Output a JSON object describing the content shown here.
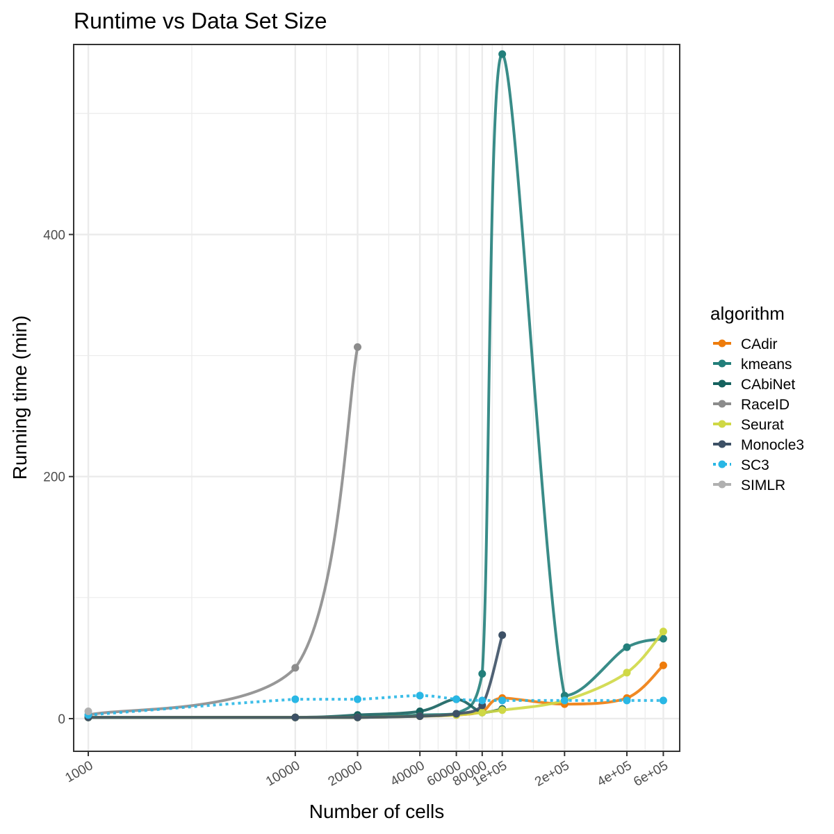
{
  "chart_data": {
    "type": "line",
    "title": "Runtime vs Data Set Size",
    "xlabel": "Number of cells",
    "ylabel": "Running time (min)",
    "xscale": "log10",
    "xlim": [
      850,
      720000
    ],
    "ylim": [
      -27,
      557
    ],
    "grid": true,
    "legend_position": "right",
    "legend_title": "algorithm",
    "x_ticks": [
      {
        "value": 1000,
        "label": "1000"
      },
      {
        "value": 10000,
        "label": "10000"
      },
      {
        "value": 20000,
        "label": "20000"
      },
      {
        "value": 40000,
        "label": "40000"
      },
      {
        "value": 60000,
        "label": "60000"
      },
      {
        "value": 80000,
        "label": "80000"
      },
      {
        "value": 100000,
        "label": "1e+05"
      },
      {
        "value": 200000,
        "label": "2e+05"
      },
      {
        "value": 400000,
        "label": "4e+05"
      },
      {
        "value": 600000,
        "label": "6e+05"
      }
    ],
    "y_ticks": [
      {
        "value": 0,
        "label": "0"
      },
      {
        "value": 200,
        "label": "200"
      },
      {
        "value": 400,
        "label": "400"
      }
    ],
    "series": [
      {
        "name": "CAdir",
        "color": "#ee7c0c",
        "dash": "solid",
        "x": [
          1000,
          10000,
          20000,
          40000,
          60000,
          80000,
          100000,
          200000,
          400000,
          600000
        ],
        "y": [
          1,
          1,
          1,
          2,
          3,
          6,
          17,
          12,
          17,
          44
        ]
      },
      {
        "name": "kmeans",
        "color": "#237f7b",
        "dash": "solid",
        "x": [
          1000,
          10000,
          20000,
          40000,
          60000,
          80000,
          100000,
          200000,
          400000,
          600000
        ],
        "y": [
          1,
          1,
          1,
          3,
          4,
          37,
          549,
          19,
          59,
          66
        ]
      },
      {
        "name": "CAbiNet",
        "color": "#16625f",
        "dash": "solid",
        "x": [
          1000,
          10000,
          20000,
          40000,
          60000,
          80000,
          100000
        ],
        "y": [
          1,
          1,
          3,
          6,
          16,
          5,
          8
        ]
      },
      {
        "name": "RaceID",
        "color": "#8c8c8c",
        "dash": "solid",
        "x": [
          1000,
          10000,
          20000
        ],
        "y": [
          3,
          42,
          307
        ]
      },
      {
        "name": "Seurat",
        "color": "#cfd845",
        "dash": "solid",
        "x": [
          1000,
          10000,
          20000,
          40000,
          60000,
          80000,
          100000,
          200000,
          400000,
          600000
        ],
        "y": [
          1,
          1,
          1,
          2,
          3,
          5,
          7,
          15,
          38,
          72
        ]
      },
      {
        "name": "Monocle3",
        "color": "#3d5166",
        "dash": "solid",
        "x": [
          1000,
          10000,
          20000,
          40000,
          60000,
          80000,
          100000
        ],
        "y": [
          1,
          1,
          1,
          2,
          4,
          11,
          69
        ]
      },
      {
        "name": "SC3",
        "color": "#29b7e5",
        "dash": "dotted",
        "x": [
          1000,
          10000,
          20000,
          40000,
          60000,
          80000,
          100000,
          200000,
          400000,
          600000
        ],
        "y": [
          3,
          16,
          16,
          19,
          16,
          15,
          15,
          15,
          15,
          15
        ]
      },
      {
        "name": "SIMLR",
        "color": "#b0b0b0",
        "dash": "solid",
        "x": [
          1000
        ],
        "y": [
          6
        ]
      }
    ]
  }
}
